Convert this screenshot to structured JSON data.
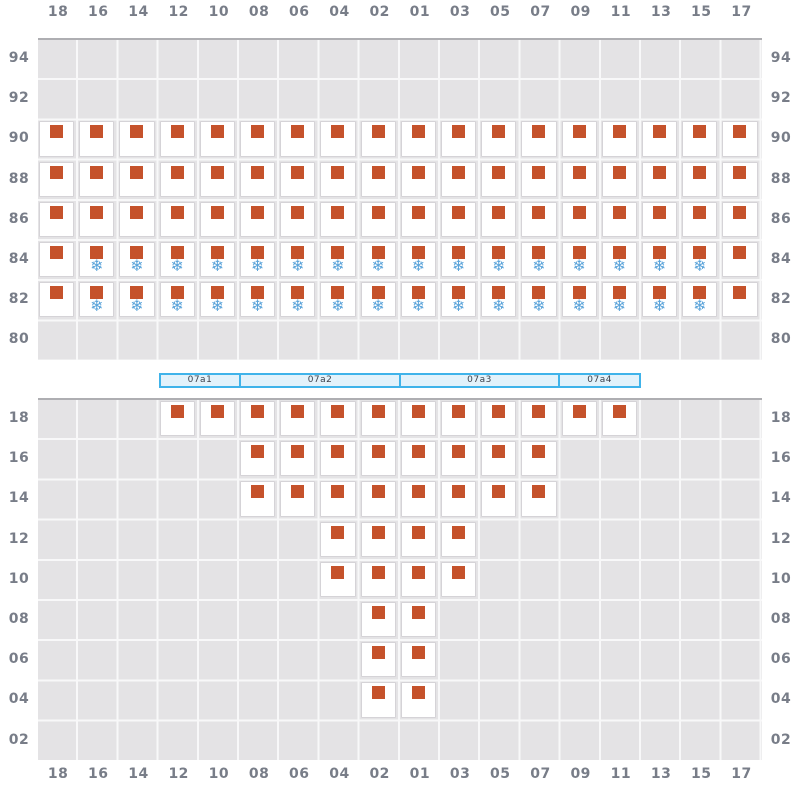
{
  "plan": {
    "name": "container-bay-plan",
    "bay_label": "07",
    "columns": [
      "18",
      "16",
      "14",
      "12",
      "10",
      "08",
      "06",
      "04",
      "02",
      "01",
      "03",
      "05",
      "07",
      "09",
      "11",
      "13",
      "15",
      "17"
    ],
    "deck": {
      "tiers": [
        "94",
        "92",
        "90",
        "88",
        "86",
        "84",
        "82",
        "80"
      ],
      "stacks": [
        {
          "tier": "90",
          "occupied": [
            "18",
            "16",
            "14",
            "12",
            "10",
            "08",
            "06",
            "04",
            "02",
            "01",
            "03",
            "05",
            "07",
            "09",
            "11",
            "13",
            "15",
            "17"
          ],
          "reefer": []
        },
        {
          "tier": "88",
          "occupied": [
            "18",
            "16",
            "14",
            "12",
            "10",
            "08",
            "06",
            "04",
            "02",
            "01",
            "03",
            "05",
            "07",
            "09",
            "11",
            "13",
            "15",
            "17"
          ],
          "reefer": []
        },
        {
          "tier": "86",
          "occupied": [
            "18",
            "16",
            "14",
            "12",
            "10",
            "08",
            "06",
            "04",
            "02",
            "01",
            "03",
            "05",
            "07",
            "09",
            "11",
            "13",
            "15",
            "17"
          ],
          "reefer": []
        },
        {
          "tier": "84",
          "occupied": [
            "18",
            "16",
            "14",
            "12",
            "10",
            "08",
            "06",
            "04",
            "02",
            "01",
            "03",
            "05",
            "07",
            "09",
            "11",
            "13",
            "15",
            "17"
          ],
          "reefer": [
            "16",
            "14",
            "12",
            "10",
            "08",
            "06",
            "04",
            "02",
            "01",
            "03",
            "05",
            "07",
            "09",
            "11",
            "13",
            "15"
          ]
        },
        {
          "tier": "82",
          "occupied": [
            "18",
            "16",
            "14",
            "12",
            "10",
            "08",
            "06",
            "04",
            "02",
            "01",
            "03",
            "05",
            "07",
            "09",
            "11",
            "13",
            "15",
            "17"
          ],
          "reefer": [
            "16",
            "14",
            "12",
            "10",
            "08",
            "06",
            "04",
            "02",
            "01",
            "03",
            "05",
            "07",
            "09",
            "11",
            "13",
            "15"
          ]
        }
      ]
    },
    "hatch_bar": {
      "segments": [
        {
          "label": "07a1",
          "columns": [
            "12",
            "10"
          ]
        },
        {
          "label": "07a2",
          "columns": [
            "08",
            "06",
            "04",
            "02"
          ]
        },
        {
          "label": "07a3",
          "columns": [
            "01",
            "03",
            "05",
            "07"
          ]
        },
        {
          "label": "07a4",
          "columns": [
            "09",
            "11"
          ]
        }
      ]
    },
    "hold": {
      "tiers": [
        "18",
        "16",
        "14",
        "12",
        "10",
        "08",
        "06",
        "04",
        "02"
      ],
      "stacks": [
        {
          "tier": "18",
          "occupied": [
            "12",
            "10",
            "08",
            "06",
            "04",
            "02",
            "01",
            "03",
            "05",
            "07",
            "09",
            "11"
          ],
          "reefer": []
        },
        {
          "tier": "16",
          "occupied": [
            "08",
            "06",
            "04",
            "02",
            "01",
            "03",
            "05",
            "07"
          ],
          "reefer": []
        },
        {
          "tier": "14",
          "occupied": [
            "08",
            "06",
            "04",
            "02",
            "01",
            "03",
            "05",
            "07"
          ],
          "reefer": []
        },
        {
          "tier": "12",
          "occupied": [
            "04",
            "02",
            "01",
            "03"
          ],
          "reefer": []
        },
        {
          "tier": "10",
          "occupied": [
            "04",
            "02",
            "01",
            "03"
          ],
          "reefer": []
        },
        {
          "tier": "08",
          "occupied": [
            "02",
            "01"
          ],
          "reefer": []
        },
        {
          "tier": "06",
          "occupied": [
            "02",
            "01"
          ],
          "reefer": []
        },
        {
          "tier": "04",
          "occupied": [
            "02",
            "01"
          ],
          "reefer": []
        }
      ]
    },
    "icons": {
      "container_icon": "orange-square",
      "reefer_icon": "snowflake",
      "reefer_glyph": "❄"
    },
    "colors": {
      "page_bg": "#ffffff",
      "plot_bg": "#e4e3e5",
      "grid_line": "#f8f8f9",
      "panel_edge": "#aeaeb2",
      "cell_fill": "#ffffff",
      "cell_border": "#d5d3d7",
      "container": "#c5522b",
      "reefer": "#58a2d9",
      "axis_label": "#787d88",
      "hatch_fill": "#e2f2fb",
      "hatch_border": "#3fb3ea",
      "hatch_label": "#3c414b"
    }
  }
}
